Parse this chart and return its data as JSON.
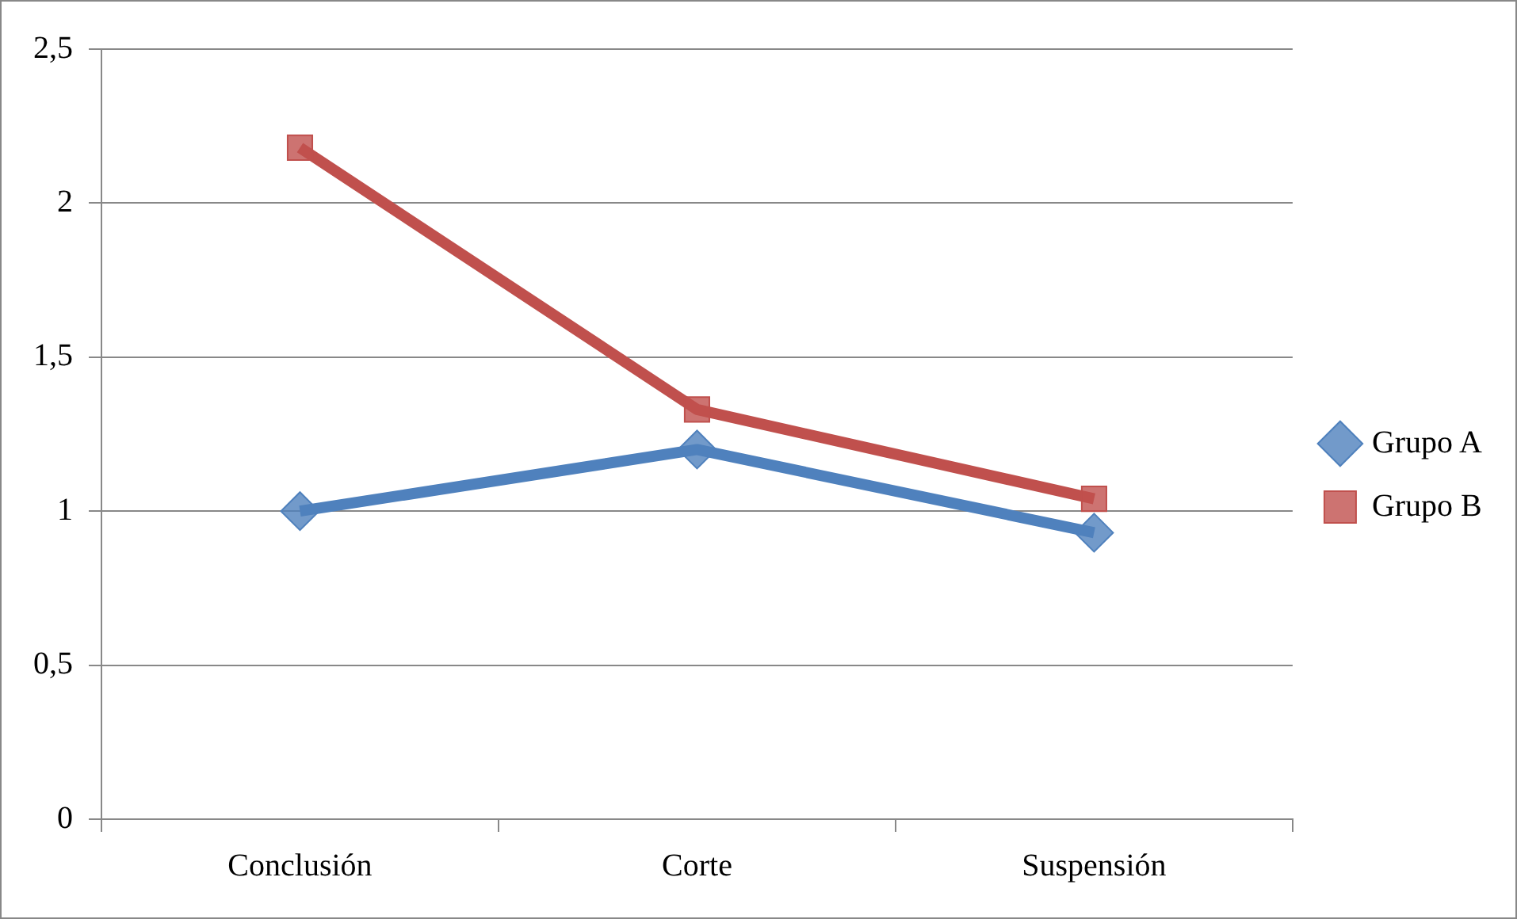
{
  "chart_data": {
    "type": "line",
    "categories": [
      "Conclusión",
      "Corte",
      "Suspensión"
    ],
    "series": [
      {
        "name": "Grupo A",
        "color": "#4f81bd",
        "values": [
          1.0,
          1.2,
          0.93
        ],
        "marker": "diamond"
      },
      {
        "name": "Grupo B",
        "color": "#c0504d",
        "values": [
          2.18,
          1.33,
          1.04
        ],
        "marker": "square"
      }
    ],
    "ylim": [
      0,
      2.5
    ],
    "yticks": [
      0,
      {
        "value": 0.5,
        "label": "0,5"
      },
      1,
      {
        "value": 1.5,
        "label": "1,5"
      },
      2,
      {
        "value": 2.5,
        "label": "2,5"
      }
    ],
    "grid": "y",
    "legend": "right"
  }
}
